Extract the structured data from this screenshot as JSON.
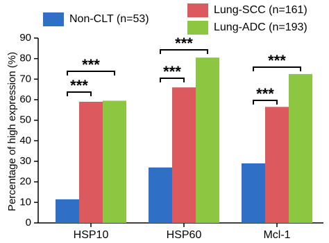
{
  "chart_data": {
    "type": "bar",
    "y_label": "Percentage of high expression (%)",
    "categories": [
      "HSP10",
      "HSP60",
      "Mcl-1"
    ],
    "series": [
      {
        "name": "Non-CLT (n=53)",
        "color": "#2f6fc6",
        "values": [
          11.5,
          27,
          29
        ]
      },
      {
        "name": "Lung-SCC (n=161)",
        "color": "#dc5a5e",
        "values": [
          59,
          66,
          56.5
        ]
      },
      {
        "name": "Lung-ADC (n=193)",
        "color": "#8dc641",
        "values": [
          59.5,
          80.5,
          72.5
        ]
      }
    ],
    "ylim": [
      0,
      90
    ],
    "yticks": [
      0,
      10,
      20,
      30,
      40,
      50,
      60,
      70,
      80,
      90
    ],
    "annotations": [
      "***",
      "***",
      "***",
      "***",
      "***",
      "***"
    ]
  }
}
